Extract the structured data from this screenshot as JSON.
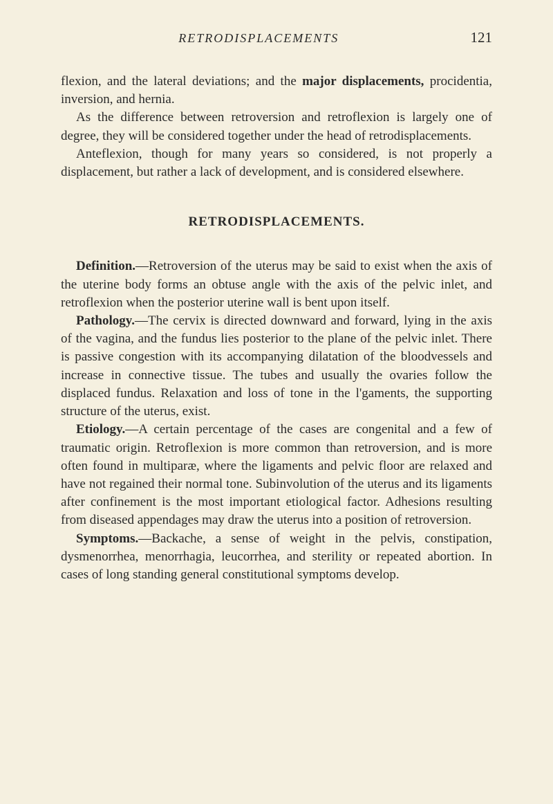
{
  "header": {
    "running_head": "RETRODISPLACEMENTS",
    "page_number": "121"
  },
  "intro": {
    "p1_text": "flexion, and the lateral deviations; and the ",
    "p1_bold": "major displacements,",
    "p1_after": " procidentia, inversion, and hernia.",
    "p2": "As the difference between retroversion and retroflexion is largely one of degree, they will be considered together under the head of retrodisplacements.",
    "p3": "Anteflexion, though for many years so considered, is not properly a displacement, but rather a lack of development, and is considered elsewhere."
  },
  "section_title": "RETRODISPLACEMENTS.",
  "definition": {
    "label": "Definition.",
    "text": "—Retroversion of the uterus may be said to exist when the axis of the uterine body forms an obtuse angle with the axis of the pelvic inlet, and retroflexion when the posterior uterine wall is bent upon itself."
  },
  "pathology": {
    "label": "Pathology.",
    "text": "—The cervix is directed downward and forward, lying in the axis of the vagina, and the fundus lies posterior to the plane of the pelvic inlet. There is passive congestion with its accompanying dilatation of the bloodvessels and increase in connective tissue. The tubes and usually the ovaries follow the displaced fundus. Relaxation and loss of tone in the l'gaments, the supporting structure of the uterus, exist."
  },
  "etiology": {
    "label": "Etiology.",
    "text": "—A certain percentage of the cases are congenital and a few of traumatic origin. Retroflexion is more common than retroversion, and is more often found in multiparæ, where the ligaments and pelvic floor are relaxed and have not regained their normal tone. Subinvolution of the uterus and its ligaments after confinement is the most important etiological factor. Adhesions resulting from diseased appendages may draw the uterus into a position of retroversion."
  },
  "symptoms": {
    "label": "Symptoms.",
    "text": "—Backache, a sense of weight in the pelvis, constipation, dysmenorrhea, menorrhagia, leucorrhea, and sterility or repeated abortion. In cases of long standing general constitutional symptoms develop."
  },
  "colors": {
    "background": "#f5f0e0",
    "text": "#2a2a2a"
  },
  "typography": {
    "body_fontsize": 19,
    "header_fontsize": 18,
    "pagenum_fontsize": 21,
    "section_title_fontsize": 19,
    "line_height": 1.38,
    "font_family": "Georgia, Times New Roman, serif"
  }
}
